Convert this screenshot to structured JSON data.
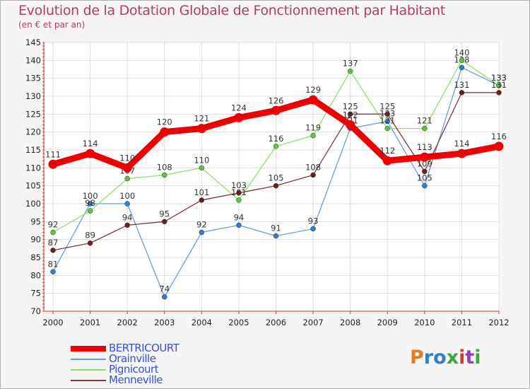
{
  "header": {
    "title": "Evolution de la Dotation Globale de Fonctionnement par Habitant",
    "subtitle": "(en € et par an)"
  },
  "logo": {
    "text": "Proxiti",
    "colors": [
      "#e87b1e",
      "#2f7fd1",
      "#2f7fd1",
      "#3aa83a",
      "#d93a2a",
      "#9a3ab8",
      "#3aa83a"
    ]
  },
  "chart_data": {
    "type": "line",
    "title": "Evolution de la Dotation Globale de Fonctionnement par Habitant",
    "subtitle": "(en € et par an)",
    "xlabel": "",
    "ylabel": "",
    "x": [
      "2000",
      "2001",
      "2002",
      "2003",
      "2004",
      "2005",
      "2006",
      "2007",
      "2008",
      "2009",
      "2010",
      "2011",
      "2012"
    ],
    "ylim": [
      70,
      145
    ],
    "yticks": [
      70,
      75,
      80,
      85,
      90,
      95,
      100,
      105,
      110,
      115,
      120,
      125,
      130,
      135,
      140,
      145
    ],
    "grid": true,
    "legend_position": "bottom-left",
    "series": [
      {
        "name": "Orainville",
        "color": "#6a9fd0",
        "marker_color": "#2f7fd1",
        "values": [
          81,
          100,
          100,
          74,
          92,
          94,
          91,
          93,
          121,
          123,
          105,
          138,
          133
        ]
      },
      {
        "name": "Pignicourt",
        "color": "#8ee070",
        "marker_color": "#5ec43a",
        "values": [
          92,
          98,
          107,
          108,
          110,
          101,
          116,
          119,
          137,
          121,
          121,
          140,
          133
        ]
      },
      {
        "name": "Menneville",
        "color": "#7a3a3a",
        "marker_color": "#6a1f22",
        "values": [
          87,
          89,
          94,
          95,
          101,
          103,
          105,
          108,
          125,
          125,
          109,
          131,
          131
        ]
      },
      {
        "name": "BERTRICOURT",
        "color": "#ee0000",
        "marker_color": "#ee0000",
        "values": [
          111,
          114,
          110,
          120,
          121,
          124,
          126,
          129,
          122,
          112,
          113,
          114,
          116
        ]
      }
    ],
    "legend_order": [
      "BERTRICOURT",
      "Orainville",
      "Pignicourt",
      "Menneville"
    ]
  }
}
